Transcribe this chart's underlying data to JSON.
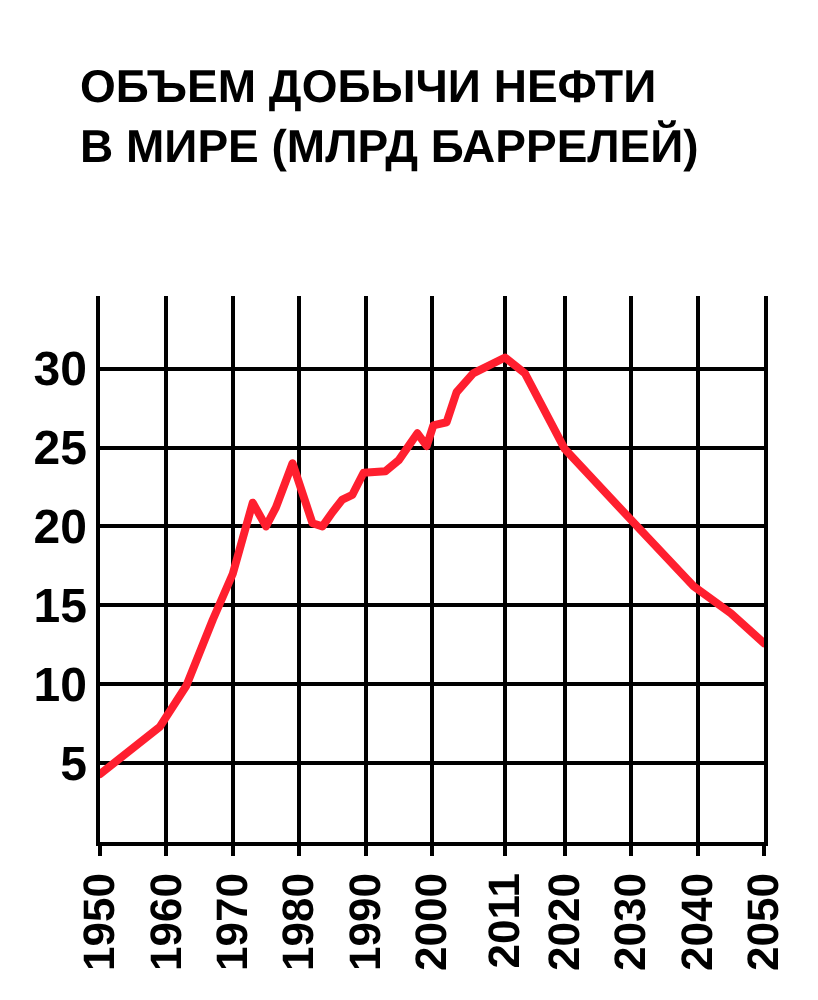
{
  "chart_data": {
    "type": "line",
    "title": "ОБЪЕМ ДОБЫЧИ НЕФТИ\nВ МИРЕ (МЛРД БАРРЕЛЕЙ)",
    "x": [
      1950,
      1959,
      1963,
      1967,
      1970,
      1973,
      1975,
      1976.5,
      1979,
      1982,
      1983.5,
      1985,
      1986.5,
      1988,
      1989.7,
      1993,
      1995,
      1997.8,
      1999.2,
      2000.2,
      2002.2,
      2003.7,
      2006.2,
      2011,
      2014,
      2020,
      2030,
      2039.4,
      2045,
      2050
    ],
    "values": [
      4.3,
      7.3,
      9.9,
      14.1,
      17.0,
      21.5,
      20.0,
      21.2,
      24.0,
      20.2,
      20.0,
      20.9,
      21.7,
      22.0,
      23.4,
      23.5,
      24.2,
      25.9,
      25.1,
      26.4,
      26.6,
      28.5,
      29.7,
      30.7,
      29.7,
      24.9,
      20.4,
      16.2,
      14.5,
      12.6
    ],
    "color": "#ff1f2f",
    "xlim": [
      1950,
      2050
    ],
    "xticks": [
      1950,
      1960,
      1970,
      1980,
      1990,
      2000,
      2011,
      2020,
      2030,
      2040,
      2050
    ],
    "ylim": [
      0,
      34.6
    ],
    "yticks": [
      5,
      10,
      15,
      20,
      25,
      30
    ],
    "grid": true,
    "marker": "none",
    "line_style": "solid"
  }
}
